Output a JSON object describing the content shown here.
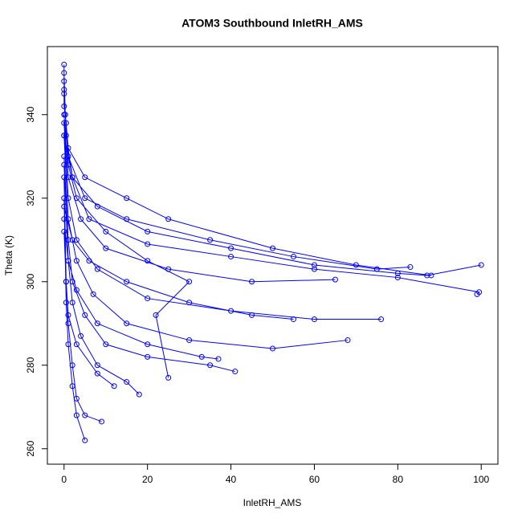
{
  "chart_data": {
    "type": "scatter-line",
    "title": "ATOM3 Southbound InletRH_AMS",
    "x_label": "InletRH_AMS",
    "y_label": "Theta (K)",
    "color": "#0000ff",
    "xlim": [
      -4,
      104
    ],
    "xticks": [
      0,
      20,
      40,
      60,
      80,
      100
    ],
    "ylim": [
      256.3,
      356.3
    ],
    "yticks": [
      260,
      280,
      300,
      320,
      340
    ],
    "x": [
      0,
      0.5,
      2,
      8,
      20,
      40,
      60,
      80,
      87,
      100,
      null,
      0,
      1,
      5,
      15,
      35,
      55,
      75,
      83,
      null,
      0,
      1,
      4,
      10,
      25,
      45,
      65,
      null,
      0,
      1,
      3,
      8,
      20,
      40,
      60,
      76,
      null,
      0,
      1,
      3,
      7,
      15,
      30,
      50,
      68,
      null,
      0,
      1,
      2,
      5,
      10,
      20,
      35,
      41,
      null,
      0,
      1,
      2,
      4,
      8,
      15,
      18,
      null,
      0,
      0.5,
      1,
      2,
      3,
      5,
      9,
      null,
      0,
      0.5,
      1,
      2,
      3,
      5,
      null,
      0,
      0.3,
      1,
      5,
      15,
      25,
      50,
      70,
      88,
      null,
      0,
      2,
      6,
      15,
      30,
      45,
      55,
      null,
      0,
      1,
      3,
      8,
      20,
      33,
      37,
      null,
      0,
      0.5,
      1,
      3,
      8,
      12,
      null,
      99,
      99.5,
      80,
      60,
      40,
      20,
      6,
      2,
      0,
      null,
      0,
      0,
      0,
      0.5,
      1,
      3,
      10,
      20,
      30,
      22,
      25
    ],
    "values": [
      348,
      335,
      325,
      318,
      312,
      308,
      304,
      302,
      301.5,
      304,
      null,
      345,
      330,
      320,
      315,
      310,
      306,
      303,
      303.5,
      null,
      340,
      325,
      315,
      308,
      303,
      300,
      300.5,
      null,
      338,
      320,
      310,
      303,
      296,
      293,
      291,
      291,
      null,
      335,
      315,
      305,
      297,
      290,
      286,
      284,
      286,
      null,
      330,
      310,
      300,
      292,
      285,
      282,
      280,
      278.5,
      null,
      328,
      305,
      295,
      287,
      280,
      276,
      273,
      null,
      325,
      300,
      290,
      280,
      272,
      268,
      266.5,
      null,
      320,
      295,
      285,
      275,
      268,
      262,
      null,
      350,
      340,
      332,
      325,
      320,
      315,
      308,
      304,
      301.5,
      null,
      318,
      310,
      305,
      300,
      295,
      292,
      291,
      null,
      315,
      305,
      298,
      290,
      285,
      282,
      281.5,
      null,
      312,
      300,
      292,
      285,
      278,
      275,
      null,
      297,
      297.5,
      301,
      303,
      306,
      309,
      315,
      325,
      335,
      null,
      352,
      346,
      342,
      338,
      328,
      320,
      312,
      305,
      300,
      292,
      277
    ]
  }
}
